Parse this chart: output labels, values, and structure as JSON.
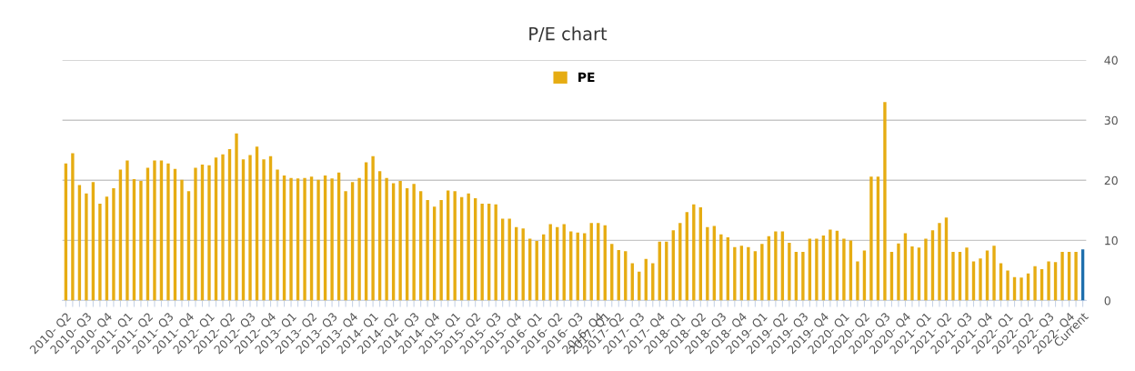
{
  "chart_data": {
    "type": "bar",
    "title": "P/E chart",
    "categories": [
      "2010- Q2",
      null,
      null,
      "2010- Q3",
      null,
      null,
      "2010- Q4",
      null,
      null,
      "2011- Q1",
      null,
      null,
      "2011- Q2",
      null,
      null,
      "2011- Q3",
      null,
      null,
      "2011- Q4",
      null,
      null,
      "2012- Q1",
      null,
      null,
      "2012- Q2",
      null,
      null,
      "2012- Q3",
      null,
      null,
      "2012- Q4",
      null,
      null,
      "2013- Q1",
      null,
      null,
      "2013- Q2",
      null,
      null,
      "2013- Q3",
      null,
      null,
      "2013- Q4",
      null,
      null,
      "2014- Q1",
      null,
      null,
      "2014- Q2",
      null,
      null,
      "2014- Q3",
      null,
      null,
      "2014- Q4",
      null,
      null,
      "2015- Q1",
      null,
      null,
      "2015- Q2",
      null,
      null,
      "2015- Q3",
      null,
      null,
      "2015- Q4",
      null,
      null,
      "2016- Q1",
      null,
      null,
      "2016- Q2",
      null,
      null,
      "2016- Q3",
      null,
      null,
      "2016- Q4",
      "2017- Q1",
      null,
      "2017- Q2",
      null,
      null,
      "2017- Q3",
      null,
      null,
      "2017- Q4",
      null,
      null,
      "2018- Q1",
      null,
      null,
      "2018- Q2",
      null,
      null,
      "2018- Q3",
      null,
      null,
      "2018- Q4",
      null,
      null,
      "2019- Q1",
      null,
      null,
      "2019- Q2",
      null,
      null,
      "2019- Q3",
      null,
      null,
      "2019- Q4",
      null,
      null,
      "2020- Q1",
      null,
      null,
      "2020- Q2",
      null,
      null,
      "2020- Q3",
      null,
      null,
      "2020- Q4",
      null,
      null,
      "2021- Q1",
      null,
      null,
      "2021- Q2",
      null,
      null,
      "2021- Q3",
      null,
      null,
      "2021- Q4",
      null,
      null,
      "2022- Q1",
      null,
      null,
      "2022- Q2",
      null,
      null,
      "2022- Q3",
      null,
      null,
      "2022- Q4",
      null,
      "Current"
    ],
    "series": [
      {
        "name": "PE",
        "color": "#e6ac12",
        "colors": [
          "#e6ac12",
          "#e6ac12",
          "#e6ac12",
          "#e6ac12",
          "#e6ac12",
          "#e6ac12",
          "#e6ac12",
          "#e6ac12",
          "#e6ac12",
          "#e6ac12",
          "#e6ac12",
          "#e6ac12",
          "#e6ac12",
          "#e6ac12",
          "#e6ac12",
          "#e6ac12",
          "#e6ac12",
          "#e6ac12",
          "#e6ac12",
          "#e6ac12",
          "#e6ac12",
          "#e6ac12",
          "#e6ac12",
          "#e6ac12",
          "#e6ac12",
          "#e6ac12",
          "#e6ac12",
          "#e6ac12",
          "#e6ac12",
          "#e6ac12",
          "#e6ac12",
          "#e6ac12",
          "#e6ac12",
          "#e6ac12",
          "#e6ac12",
          "#e6ac12",
          "#e6ac12",
          "#e6ac12",
          "#e6ac12",
          "#e6ac12",
          "#e6ac12",
          "#e6ac12",
          "#e6ac12",
          "#e6ac12",
          "#e6ac12",
          "#e6ac12",
          "#e6ac12",
          "#e6ac12",
          "#e6ac12",
          "#e6ac12",
          "#e6ac12",
          "#e6ac12",
          "#e6ac12",
          "#e6ac12",
          "#e6ac12",
          "#e6ac12",
          "#e6ac12",
          "#e6ac12",
          "#e6ac12",
          "#e6ac12",
          "#e6ac12",
          "#e6ac12",
          "#e6ac12",
          "#e6ac12",
          "#e6ac12",
          "#e6ac12",
          "#e6ac12",
          "#e6ac12",
          "#e6ac12",
          "#e6ac12",
          "#e6ac12",
          "#e6ac12",
          "#e6ac12",
          "#e6ac12",
          "#e6ac12",
          "#e6ac12",
          "#e6ac12",
          "#e6ac12",
          "#e6ac12",
          "#e6ac12",
          "#e6ac12",
          "#e6ac12",
          "#e6ac12",
          "#e6ac12",
          "#e6ac12",
          "#e6ac12",
          "#e6ac12",
          "#e6ac12",
          "#e6ac12",
          "#e6ac12",
          "#e6ac12",
          "#e6ac12",
          "#e6ac12",
          "#e6ac12",
          "#e6ac12",
          "#e6ac12",
          "#e6ac12",
          "#e6ac12",
          "#e6ac12",
          "#e6ac12",
          "#e6ac12",
          "#e6ac12",
          "#e6ac12",
          "#e6ac12",
          "#e6ac12",
          "#e6ac12",
          "#e6ac12",
          "#e6ac12",
          "#e6ac12",
          "#e6ac12",
          "#e6ac12",
          "#e6ac12",
          "#e6ac12",
          "#e6ac12",
          "#e6ac12",
          "#e6ac12",
          "#e6ac12",
          "#e6ac12",
          "#e6ac12",
          "#e6ac12",
          "#e6ac12",
          "#e6ac12",
          "#e6ac12",
          "#e6ac12",
          "#e6ac12",
          "#e6ac12",
          "#e6ac12",
          "#e6ac12",
          "#e6ac12",
          "#e6ac12",
          "#e6ac12",
          "#e6ac12",
          "#e6ac12",
          "#e6ac12",
          "#e6ac12",
          "#e6ac12",
          "#e6ac12",
          "#e6ac12",
          "#e6ac12",
          "#e6ac12",
          "#e6ac12",
          "#e6ac12",
          "#e6ac12",
          "#e6ac12",
          "#e6ac12",
          "#e6ac12",
          "#e6ac12",
          "#e6ac12",
          "#e6ac12",
          "#1f6fad"
        ],
        "values": [
          22.8,
          24.5,
          19.2,
          17.8,
          19.7,
          16.1,
          17.3,
          18.7,
          21.8,
          23.3,
          20.2,
          19.9,
          22.1,
          23.3,
          23.3,
          22.8,
          21.9,
          20.1,
          18.2,
          22.1,
          22.6,
          22.5,
          23.8,
          24.3,
          25.2,
          27.8,
          23.5,
          24.2,
          25.6,
          23.5,
          24.0,
          21.8,
          20.8,
          20.4,
          20.3,
          20.4,
          20.6,
          20.1,
          20.8,
          20.3,
          21.3,
          18.2,
          19.7,
          20.4,
          23.0,
          24.0,
          21.5,
          20.4,
          19.5,
          19.9,
          18.7,
          19.4,
          18.2,
          16.7,
          15.6,
          16.7,
          18.3,
          18.2,
          17.2,
          17.8,
          17.0,
          16.1,
          16.1,
          16.0,
          13.6,
          13.6,
          12.2,
          12.0,
          10.3,
          9.9,
          11.0,
          12.7,
          12.2,
          12.7,
          11.5,
          11.3,
          11.2,
          12.9,
          12.9,
          12.5,
          9.4,
          8.4,
          8.2,
          6.2,
          4.8,
          6.9,
          6.2,
          9.8,
          9.8,
          11.7,
          12.9,
          14.7,
          16.0,
          15.5,
          12.2,
          12.4,
          11.0,
          10.5,
          8.9,
          9.1,
          8.9,
          8.2,
          9.4,
          10.7,
          11.5,
          11.5,
          9.6,
          8.1,
          8.1,
          10.3,
          10.3,
          10.8,
          11.8,
          11.6,
          10.3,
          10.0,
          6.5,
          8.3,
          20.6,
          20.6,
          33.0,
          8.1,
          9.5,
          11.2,
          9.0,
          8.8,
          10.3,
          11.7,
          12.9,
          13.8,
          8.1,
          8.1,
          8.8,
          6.5,
          7.0,
          8.3,
          9.1,
          6.2,
          5.0,
          3.9,
          3.8,
          4.5,
          5.7,
          5.2,
          6.5,
          6.4,
          8.1,
          8.1,
          8.1,
          8.5
        ]
      }
    ],
    "ylim": [
      0,
      40
    ],
    "yticks": [
      0,
      10,
      20,
      30,
      40
    ],
    "grid": "y",
    "legend": "top"
  }
}
